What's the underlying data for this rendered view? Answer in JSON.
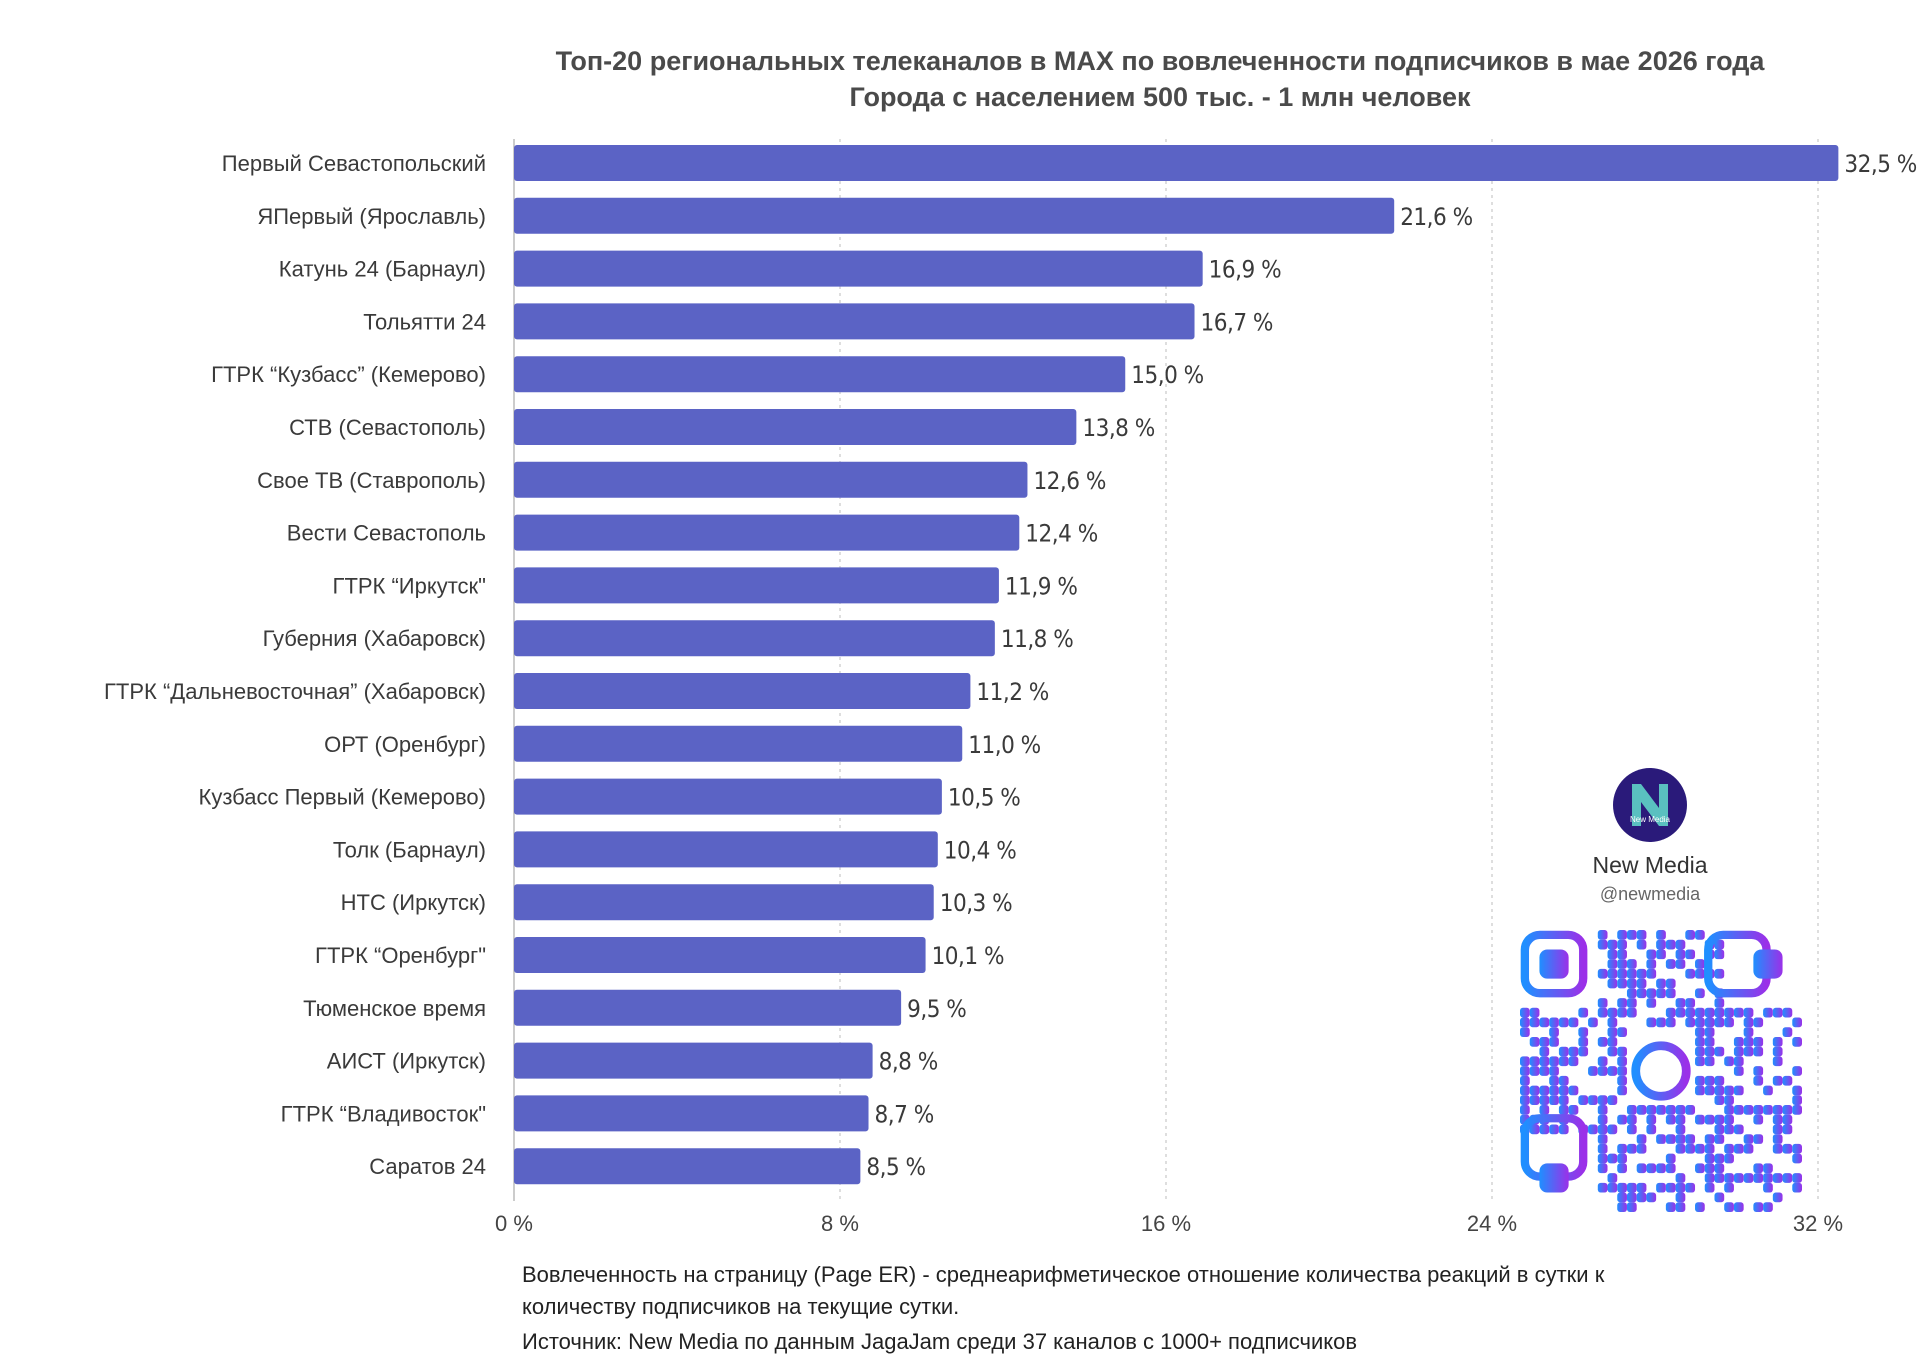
{
  "title_line1": "Топ-20 региональных телеканалов в MAX по вовлеченности подписчиков в мае 2026 года",
  "title_line2": "Города с населением 500 тыс. - 1 млн человек",
  "footnote": {
    "line1": "Вовлеченность на страницу (Page ER) - среднеарифметическое отношение количества реакций в сутки к",
    "line2": "количеству подписчиков на текущие сутки.",
    "line3": "Источник: New Media по данным JagaJam среди 37 каналов с 1000+ подписчиков"
  },
  "brand": {
    "name": "New Media",
    "handle": "@newmedia",
    "logo_text": "New Media"
  },
  "colors": {
    "bar": "#5b63c5",
    "grid": "#c8c8c8",
    "label": "#3a3a3a",
    "value": "#3a3a3a",
    "logo_bg": "#2a1a7a",
    "qr_start": "#1f8fff",
    "qr_end": "#9b30e8"
  },
  "chart_data": {
    "type": "bar",
    "orientation": "horizontal",
    "categories": [
      "Первый Севастопольский",
      "ЯПервый (Ярославль)",
      "Катунь 24 (Барнаул)",
      "Тольятти 24",
      "ГТРК “Кузбасс” (Кемерово)",
      "СТВ (Севастополь)",
      "Свое ТВ (Ставрополь)",
      "Вести Севастополь",
      "ГТРК “Иркутск\"",
      "Губерния (Хабаровск)",
      "ГТРК “Дальневосточная” (Хабаровск)",
      "ОРТ (Оренбург)",
      "Кузбасс Первый (Кемерово)",
      "Толк (Барнаул)",
      "НТС (Иркутск)",
      "ГТРК “Оренбург\"",
      "Тюменское время",
      "АИСТ (Иркутск)",
      "ГТРК “Владивосток\"",
      "Саратов 24"
    ],
    "values": [
      32.5,
      21.6,
      16.9,
      16.7,
      15.0,
      13.8,
      12.6,
      12.4,
      11.9,
      11.8,
      11.2,
      11.0,
      10.5,
      10.4,
      10.3,
      10.1,
      9.5,
      8.8,
      8.7,
      8.5
    ],
    "value_labels": [
      "32,5 %",
      "21,6 %",
      "16,9 %",
      "16,7 %",
      "15,0 %",
      "13,8 %",
      "12,6 %",
      "12,4 %",
      "11,9 %",
      "11,8 %",
      "11,2 %",
      "11,0 %",
      "10,5 %",
      "10,4 %",
      "10,3 %",
      "10,1 %",
      "9,5 %",
      "8,8 %",
      "8,7 %",
      "8,5 %"
    ],
    "xlim": [
      0,
      32
    ],
    "xticks": [
      0,
      8,
      16,
      24,
      32
    ],
    "xtick_labels": [
      "0 %",
      "8 %",
      "16 %",
      "24 %",
      "32 %"
    ],
    "grid": "vertical dotted",
    "legend": "none"
  }
}
